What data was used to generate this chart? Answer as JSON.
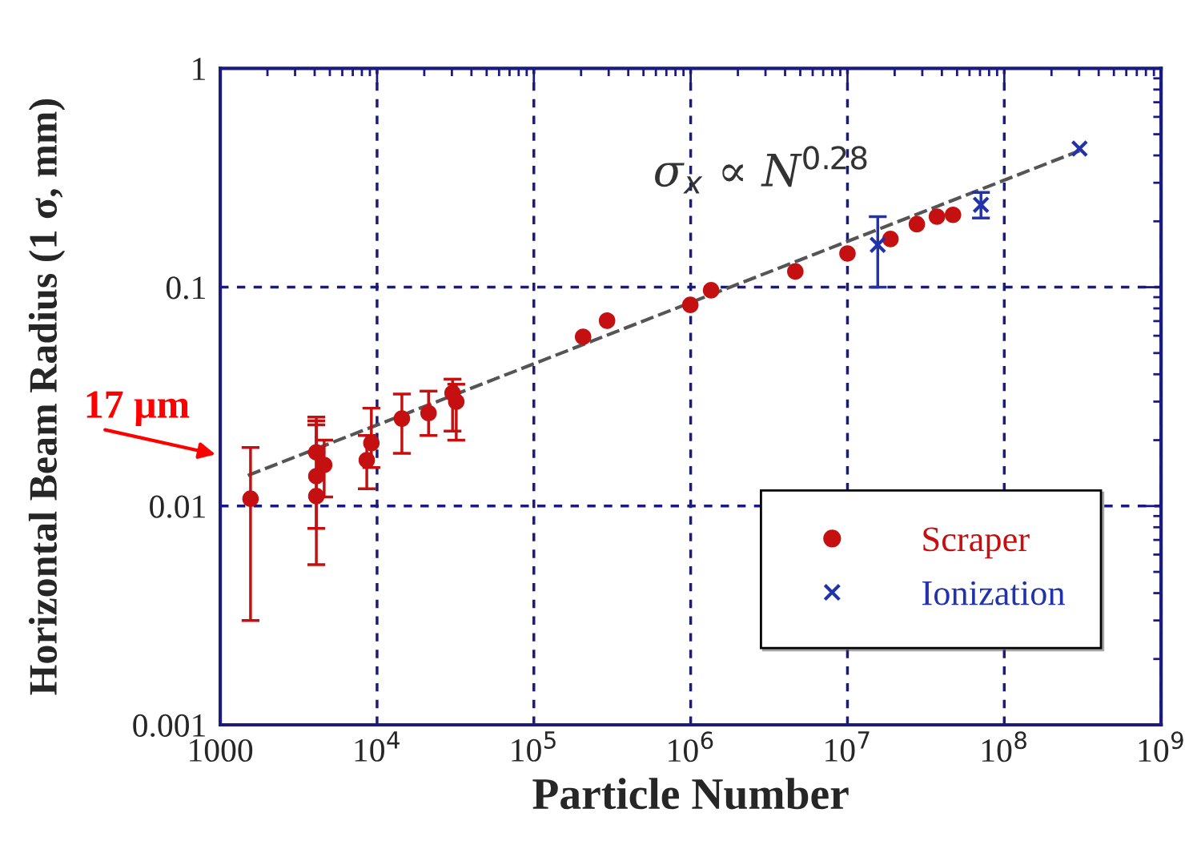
{
  "chart_data": {
    "type": "scatter",
    "xlabel": "Particle Number",
    "ylabel": "Horizontal Beam Radius (1 σ, mm)",
    "log": "xy",
    "xlim": [
      1000,
      1000000000
    ],
    "ylim": [
      0.001,
      1
    ],
    "xticks": [
      1000,
      {
        "value": 10000,
        "label": "10$^{4}$"
      },
      {
        "value": 100000,
        "label": "10$^{5}$"
      },
      {
        "value": 1000000,
        "label": "10$^{6}$"
      },
      {
        "value": 10000000,
        "label": "10$^{7}$"
      },
      {
        "value": 100000000,
        "label": "10$^{8}$"
      },
      {
        "value": 1000000000,
        "label": "10$^{9}$"
      }
    ],
    "yticks": [
      0.001,
      0.01,
      0.1,
      1
    ],
    "grid": true,
    "legend": "bottom right",
    "series": [
      {
        "name": "Scraper",
        "color": "#c41010",
        "marker": "circle",
        "x": [
          1560,
          4100,
          4100,
          4100,
          4600,
          8800,
          9200,
          8600,
          14400,
          21300,
          30300,
          32000,
          206000,
          293000,
          995000,
          1350000,
          4650000,
          10000000,
          18800000,
          27700000,
          37200000,
          47100000
        ],
        "values": [
          0.0108,
          0.0176,
          0.0137,
          0.0111,
          0.0154,
          null,
          0.0194,
          0.0162,
          0.0251,
          0.0266,
          0.0328,
          0.03,
          0.0593,
          0.0703,
          0.083,
          0.0968,
          0.118,
          0.1426,
          0.166,
          0.194,
          0.21,
          0.214
        ],
        "errors": [
          [
            0.003,
            0.0185
          ],
          [
            0.0176,
            0.0255
          ],
          [
            0.0054,
            0.0245
          ],
          [
            0.0079,
            0.0235
          ],
          [
            0.011,
            0.02
          ],
          null,
          [
            0.015,
            0.028
          ],
          [
            0.012,
            0.021
          ],
          [
            0.0174,
            0.0325
          ],
          [
            0.021,
            0.0335
          ],
          [
            0.022,
            0.038
          ],
          [
            0.02,
            0.036
          ],
          null,
          null,
          null,
          null,
          null,
          null,
          null,
          null,
          null,
          null
        ]
      },
      {
        "name": "Ionization",
        "color": "#2233aa",
        "marker": "cross",
        "x": [
          15600000,
          71000000,
          302000000
        ],
        "values": [
          0.156,
          0.238,
          0.43
        ],
        "errors": [
          [
            0.1,
            0.21
          ],
          [
            0.207,
            0.271
          ],
          null
        ]
      },
      {
        "type": "line",
        "color": "#555555",
        "line_style": "dashed",
        "marker": "none",
        "x": [
          1500,
          302000000
        ],
        "values": [
          0.0138,
          0.42
        ]
      }
    ],
    "annotations": [
      "σ$_{x}$ ∝ N$^{0.28}$",
      "17 μm"
    ]
  }
}
